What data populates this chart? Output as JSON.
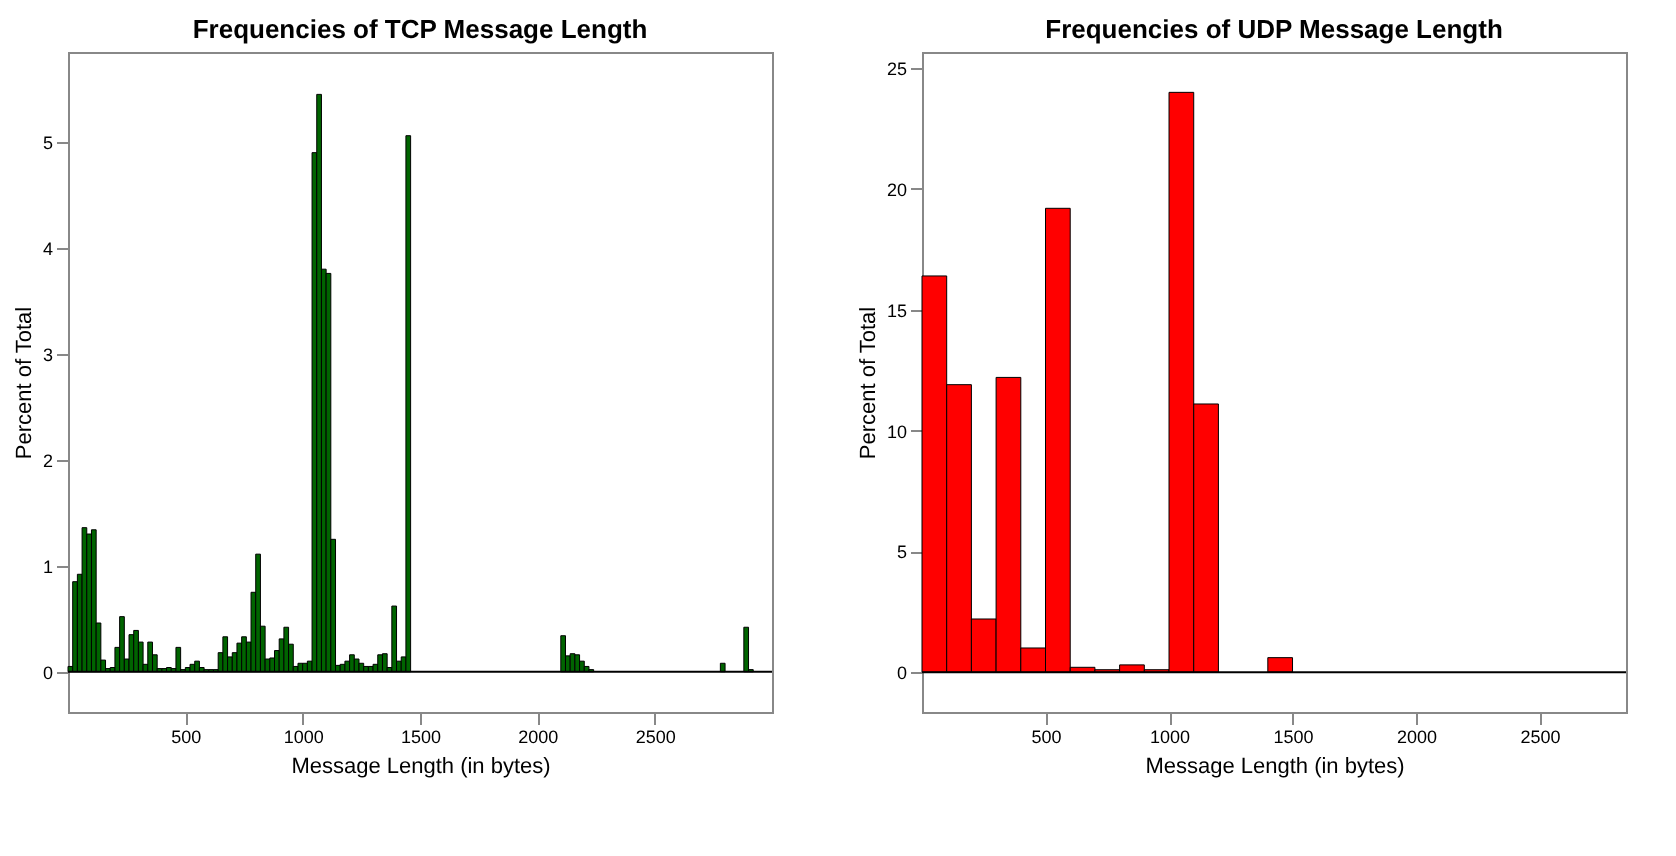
{
  "chart_data": [
    {
      "type": "histogram",
      "title": "Frequencies of TCP Message Length",
      "xlabel": "Message Length (in bytes)",
      "ylabel": "Percent of Total",
      "color": "#006400",
      "bins": [
        0,
        20,
        40,
        60,
        80,
        100,
        120,
        140,
        160,
        180,
        200,
        220,
        240,
        260,
        280,
        300,
        320,
        340,
        360,
        380,
        400,
        420,
        440,
        460,
        480,
        500,
        520,
        540,
        560,
        580,
        600,
        620,
        640,
        660,
        680,
        700,
        720,
        740,
        760,
        780,
        800,
        820,
        840,
        860,
        880,
        900,
        920,
        940,
        960,
        980,
        1000,
        1020,
        1040,
        1060,
        1080,
        1100,
        1120,
        1140,
        1160,
        1180,
        1200,
        1220,
        1240,
        1260,
        1280,
        1300,
        1320,
        1340,
        1360,
        1380,
        1400,
        1420,
        1440,
        1460,
        1480,
        1500,
        1520,
        1540,
        1560,
        1580,
        1600,
        1620,
        1640,
        1660,
        1680,
        1700,
        1720,
        1740,
        1760,
        1780,
        1800,
        1820,
        1840,
        1860,
        1880,
        1900,
        1920,
        1940,
        1960,
        1980,
        2000,
        2020,
        2040,
        2060,
        2080,
        2100,
        2120,
        2140,
        2160,
        2180,
        2200,
        2220,
        2240,
        2260,
        2280,
        2300,
        2320,
        2340,
        2360,
        2380,
        2400,
        2420,
        2440,
        2460,
        2480,
        2500,
        2520,
        2540,
        2560,
        2580,
        2600,
        2620,
        2640,
        2660,
        2680,
        2700,
        2720,
        2740,
        2760,
        2780,
        2800,
        2820,
        2840,
        2860,
        2880,
        2900,
        2920,
        2940,
        2960
      ],
      "values": [
        0.05,
        0.85,
        0.92,
        1.36,
        1.3,
        1.34,
        0.46,
        0.11,
        0.03,
        0.04,
        0.23,
        0.52,
        0.12,
        0.35,
        0.39,
        0.28,
        0.07,
        0.28,
        0.16,
        0.03,
        0.03,
        0.04,
        0.03,
        0.23,
        0.02,
        0.04,
        0.07,
        0.1,
        0.04,
        0.02,
        0.02,
        0.02,
        0.18,
        0.33,
        0.14,
        0.18,
        0.27,
        0.33,
        0.28,
        0.75,
        1.11,
        0.43,
        0.12,
        0.13,
        0.2,
        0.31,
        0.42,
        0.26,
        0.05,
        0.08,
        0.08,
        0.1,
        4.9,
        5.45,
        3.8,
        3.76,
        1.25,
        0.06,
        0.07,
        0.1,
        0.16,
        0.12,
        0.08,
        0.05,
        0.05,
        0.07,
        0.16,
        0.17,
        0.04,
        0.62,
        0.1,
        0.14,
        5.06,
        0,
        0,
        0,
        0,
        0,
        0,
        0,
        0,
        0,
        0,
        0,
        0,
        0,
        0,
        0,
        0,
        0,
        0,
        0,
        0,
        0,
        0,
        0,
        0,
        0,
        0,
        0,
        0,
        0,
        0,
        0,
        0,
        0.34,
        0.15,
        0.17,
        0.16,
        0.1,
        0.05,
        0.02,
        0,
        0,
        0,
        0,
        0,
        0,
        0,
        0,
        0,
        0,
        0,
        0,
        0,
        0,
        0,
        0,
        0,
        0,
        0,
        0,
        0,
        0,
        0,
        0,
        0,
        0,
        0,
        0.08,
        0,
        0,
        0,
        0,
        0.42,
        0.02,
        0,
        0
      ],
      "xlim": [
        0,
        3000
      ],
      "xticks": [
        500,
        1000,
        1500,
        2000,
        2500
      ],
      "ylim": [
        -0.38,
        5.85
      ],
      "yticks": [
        0,
        1,
        2,
        3,
        4,
        5
      ],
      "ref_lines": [
        {
          "axis": "y",
          "value": 0,
          "color": "#000000"
        }
      ]
    },
    {
      "type": "histogram",
      "title": "Frequencies of UDP Message Length",
      "xlabel": "Message Length (in bytes)",
      "ylabel": "Percent of Total",
      "color": "#ff0000",
      "bins": [
        0,
        100,
        200,
        300,
        400,
        500,
        600,
        700,
        800,
        900,
        1000,
        1100,
        1200,
        1300,
        1400,
        1500
      ],
      "values": [
        16.4,
        11.9,
        2.2,
        12.2,
        1.0,
        19.2,
        0.2,
        0.1,
        0.3,
        0.1,
        24.0,
        11.1,
        0,
        0,
        0.6
      ],
      "xlim": [
        0,
        2850
      ],
      "xticks": [
        500,
        1000,
        1500,
        2000,
        2500
      ],
      "ylim": [
        -1.65,
        25.67
      ],
      "yticks": [
        0,
        5,
        10,
        15,
        20,
        25
      ],
      "ref_lines": [
        {
          "axis": "y",
          "value": 0,
          "color": "#000000"
        }
      ]
    }
  ]
}
